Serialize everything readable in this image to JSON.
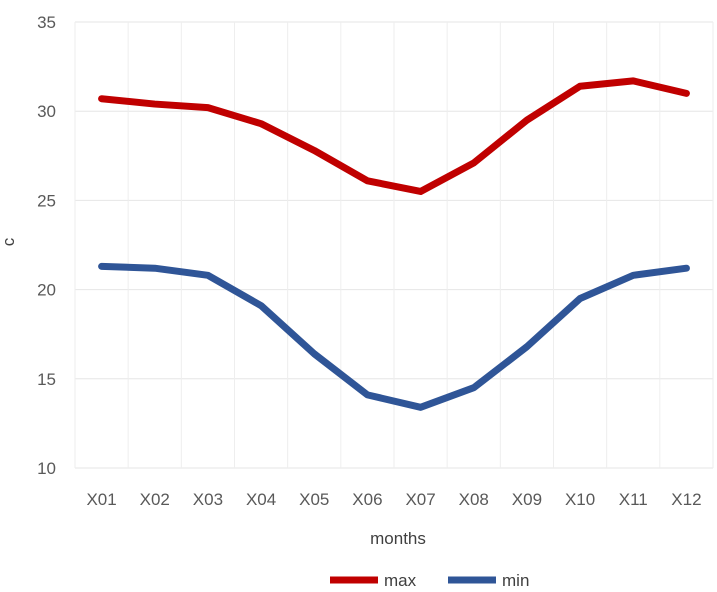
{
  "chart_data": {
    "type": "line",
    "title": "",
    "xlabel": "months",
    "ylabel": "c",
    "categories": [
      "X01",
      "X02",
      "X03",
      "X04",
      "X05",
      "X06",
      "X07",
      "X08",
      "X09",
      "X10",
      "X11",
      "X12"
    ],
    "series": [
      {
        "name": "max",
        "color": "#c00000",
        "values": [
          30.7,
          30.4,
          30.2,
          29.3,
          27.8,
          26.1,
          25.5,
          27.1,
          29.5,
          31.4,
          31.7,
          31.0
        ]
      },
      {
        "name": "min",
        "color": "#2f5597",
        "values": [
          21.3,
          21.2,
          20.8,
          19.1,
          16.4,
          14.1,
          13.4,
          14.5,
          16.8,
          19.5,
          20.8,
          21.2
        ]
      }
    ],
    "ylim": [
      10,
      35
    ],
    "yticks": [
      "10",
      "15",
      "20",
      "25",
      "30",
      "35"
    ],
    "grid": true,
    "legend_position": "bottom"
  }
}
